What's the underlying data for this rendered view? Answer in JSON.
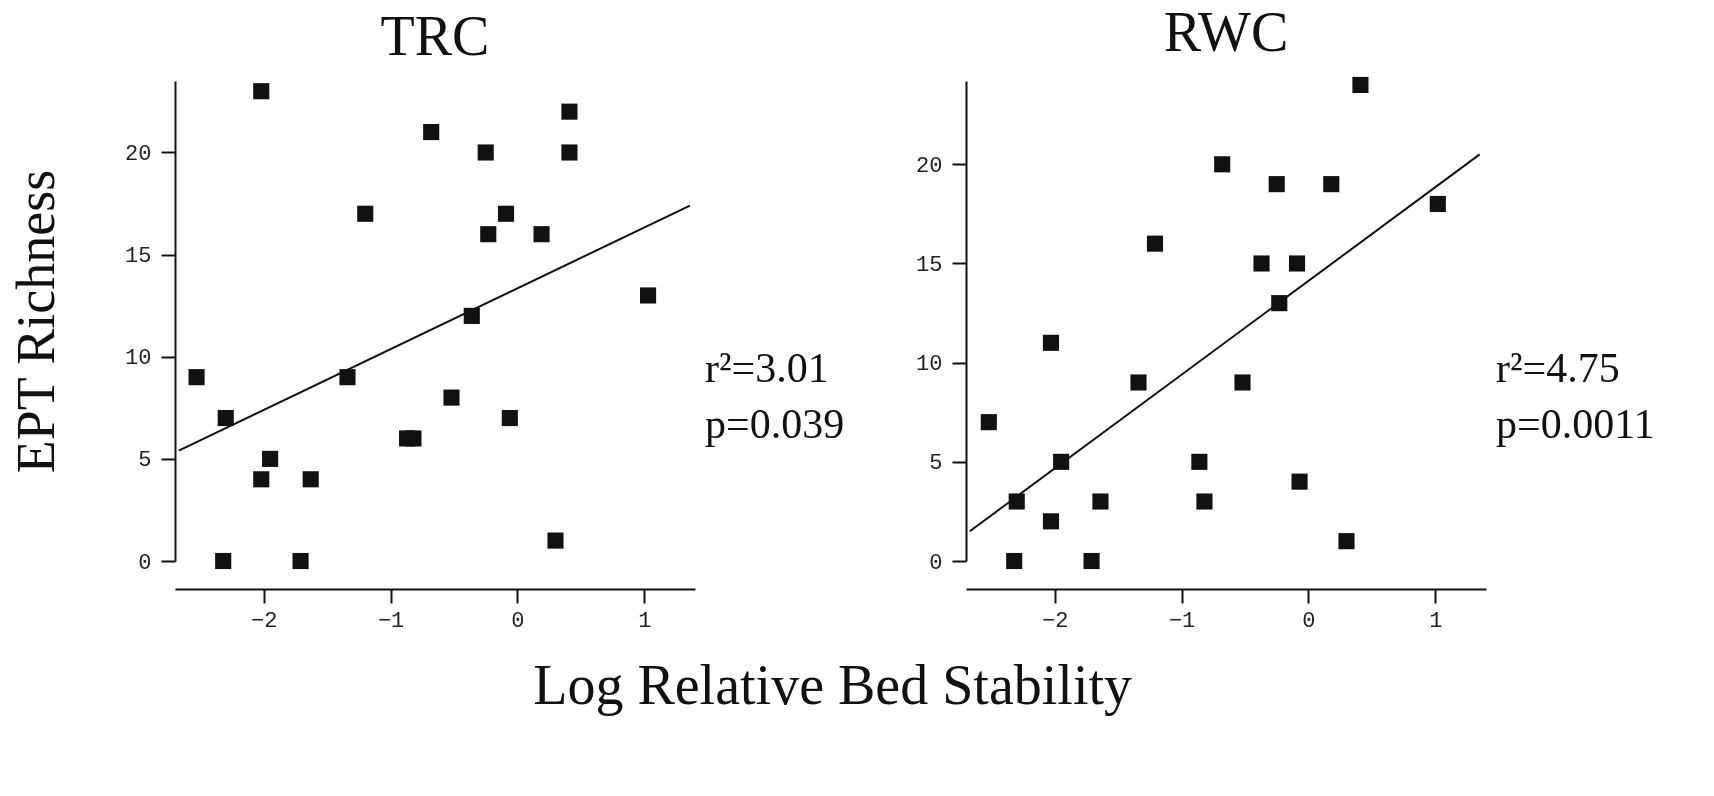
{
  "chart_data": [
    {
      "type": "scatter",
      "title": "TRC",
      "ylabel": "EPT Richness",
      "xlabel": "Log Relative Bed Stability",
      "xlim": [
        -2.7,
        1.4
      ],
      "xticks": [
        -2,
        -1,
        0,
        1
      ],
      "ylim": [
        0,
        23.5
      ],
      "yticks": [
        0,
        5,
        10,
        15,
        20
      ],
      "grid": false,
      "annotations": [
        "r²=3.01",
        "p=0.039"
      ],
      "series": [
        {
          "marker": "square",
          "color": "#111111",
          "x": [
            -2.53,
            -2.3,
            -2.02,
            -2.32,
            -2.02,
            -1.95,
            -1.71,
            -1.63,
            -1.34,
            -1.2,
            -0.87,
            -0.82,
            -0.68,
            -0.52,
            -0.36,
            -0.25,
            -0.23,
            -0.09,
            -0.06,
            0.19,
            0.3,
            0.41,
            0.41,
            1.03
          ],
          "values": [
            9,
            7,
            23,
            0,
            4,
            5,
            0,
            4,
            9,
            17,
            6,
            6,
            21,
            8,
            12,
            20,
            16,
            17,
            7,
            16,
            1,
            22,
            20,
            13
          ]
        },
        {
          "type": "line",
          "color": "#111111",
          "x": [
            -2.67,
            1.36
          ],
          "values": [
            5.4,
            17.4
          ]
        }
      ]
    },
    {
      "type": "scatter",
      "title": "RWC",
      "xlim": [
        -2.7,
        1.4
      ],
      "xticks": [
        -2,
        -1,
        0,
        1
      ],
      "ylim": [
        0,
        24.2
      ],
      "yticks": [
        0,
        5,
        10,
        15,
        20
      ],
      "grid": false,
      "annotations": [
        "r²=4.75",
        "p=0.0011"
      ],
      "series": [
        {
          "marker": "square",
          "color": "#111111",
          "x": [
            -2.52,
            -2.3,
            -2.32,
            -2.03,
            -2.03,
            -1.95,
            -1.71,
            -1.64,
            -1.34,
            -1.21,
            -0.86,
            -0.82,
            -0.68,
            -0.52,
            -0.37,
            -0.25,
            -0.23,
            -0.09,
            -0.07,
            0.18,
            0.3,
            0.41,
            1.02
          ],
          "values": [
            7,
            3,
            0,
            2,
            11,
            5,
            0,
            3,
            9,
            16,
            5,
            3,
            20,
            9,
            15,
            19,
            13,
            15,
            4,
            19,
            1,
            24,
            18
          ]
        },
        {
          "type": "line",
          "color": "#111111",
          "x": [
            -2.67,
            1.35
          ],
          "values": [
            1.5,
            20.5
          ]
        }
      ]
    }
  ]
}
